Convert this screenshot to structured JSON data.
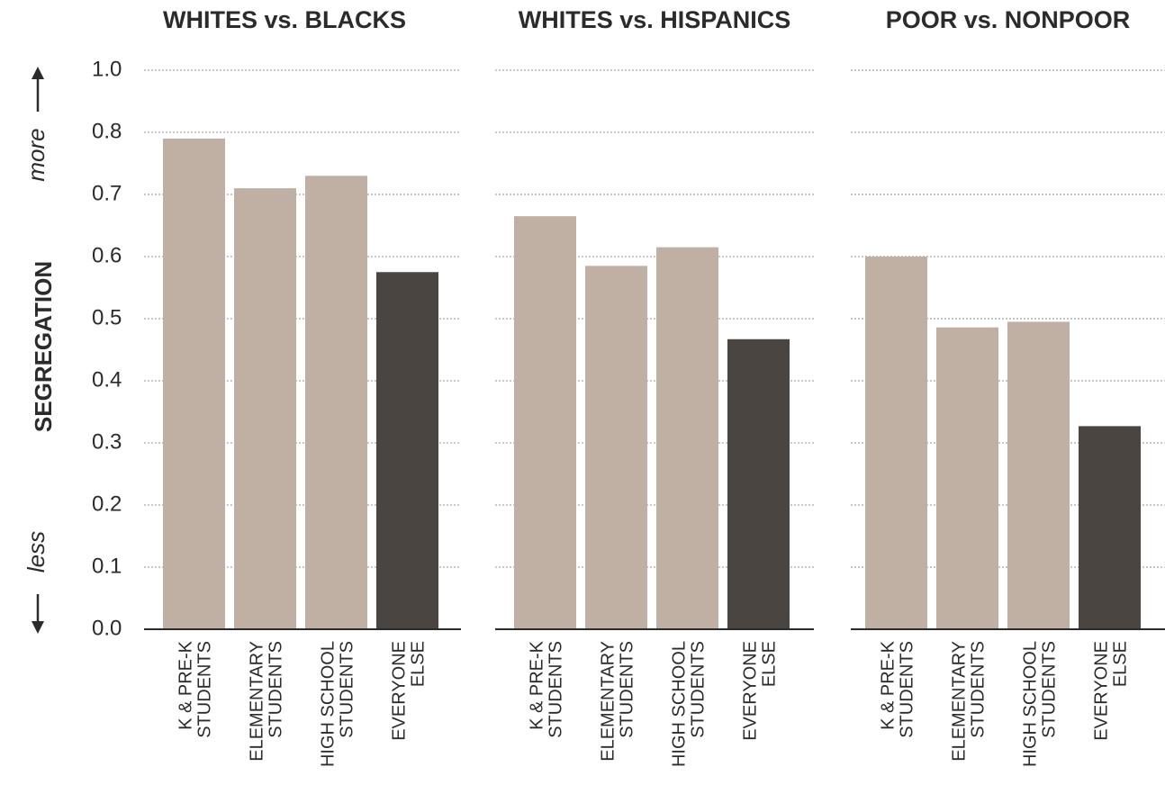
{
  "chart_data": {
    "type": "bar",
    "ylabel": "SEGREGATION",
    "direction_labels": {
      "up": "more",
      "down": "less"
    },
    "ylim": [
      0,
      1.0
    ],
    "yticks": [
      "0.0",
      "0.1",
      "0.2",
      "0.3",
      "0.4",
      "0.5",
      "0.6",
      "0.7",
      "0.8",
      "1.0"
    ],
    "ytick_values": [
      0,
      0.1,
      0.2,
      0.3,
      0.4,
      0.5,
      0.6,
      0.7,
      0.8,
      0.9
    ],
    "scale_note": "top tick labeled 1.0 sits one step above 0.8",
    "grid": true,
    "categories": [
      [
        "K & PRE-K",
        "STUDENTS"
      ],
      [
        "ELEMENTARY",
        "STUDENTS"
      ],
      [
        "HIGH SCHOOL",
        "STUDENTS"
      ],
      [
        "EVERYONE",
        "ELSE"
      ]
    ],
    "colors": {
      "students": "#c0b0a3",
      "everyone_else": "#4a4541",
      "text": "#2b2b2b",
      "grid": "#b5b5b5"
    },
    "panels": [
      {
        "title": "WHITES vs. BLACKS",
        "values": [
          0.79,
          0.71,
          0.73,
          0.575
        ]
      },
      {
        "title": "WHITES vs. HISPANICS",
        "values": [
          0.665,
          0.585,
          0.615,
          0.467
        ]
      },
      {
        "title": "POOR vs. NONPOOR",
        "values": [
          0.6,
          0.486,
          0.495,
          0.327
        ]
      }
    ]
  }
}
